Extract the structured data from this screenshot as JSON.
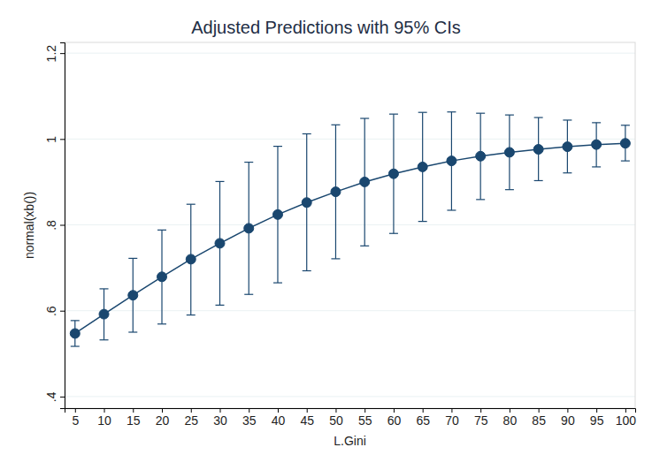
{
  "chart_data": {
    "type": "line",
    "title": "Adjusted Predictions with 95% CIs",
    "x_label": "L.Gini",
    "y_label": "normal(xb())",
    "x": [
      5,
      10,
      15,
      20,
      25,
      30,
      35,
      40,
      45,
      50,
      55,
      60,
      65,
      70,
      75,
      80,
      85,
      90,
      95,
      100
    ],
    "values": [
      0.547,
      0.592,
      0.636,
      0.679,
      0.72,
      0.757,
      0.792,
      0.824,
      0.852,
      0.877,
      0.9,
      0.919,
      0.935,
      0.949,
      0.96,
      0.969,
      0.976,
      0.982,
      0.987,
      0.99
    ],
    "ci_lower": [
      0.517,
      0.532,
      0.55,
      0.569,
      0.59,
      0.613,
      0.638,
      0.665,
      0.693,
      0.721,
      0.751,
      0.78,
      0.808,
      0.834,
      0.859,
      0.882,
      0.903,
      0.921,
      0.935,
      0.949
    ],
    "ci_upper": [
      0.577,
      0.651,
      0.722,
      0.788,
      0.848,
      0.901,
      0.946,
      0.983,
      1.012,
      1.033,
      1.048,
      1.058,
      1.062,
      1.063,
      1.06,
      1.056,
      1.05,
      1.044,
      1.038,
      1.032
    ],
    "color": "#1a476f",
    "marker": "circle",
    "xlim": [
      3.2,
      101.7
    ],
    "ylim": [
      0.373,
      1.225
    ],
    "xticks": [
      5,
      10,
      15,
      20,
      25,
      30,
      35,
      40,
      45,
      50,
      55,
      60,
      65,
      70,
      75,
      80,
      85,
      90,
      95,
      100
    ],
    "yticks": [
      {
        "value": 0.4,
        "label": ".4"
      },
      {
        "value": 0.6,
        "label": ".6"
      },
      {
        "value": 0.8,
        "label": ".8"
      },
      1,
      {
        "value": 1.2,
        "label": "1.2"
      }
    ],
    "grid": true
  }
}
